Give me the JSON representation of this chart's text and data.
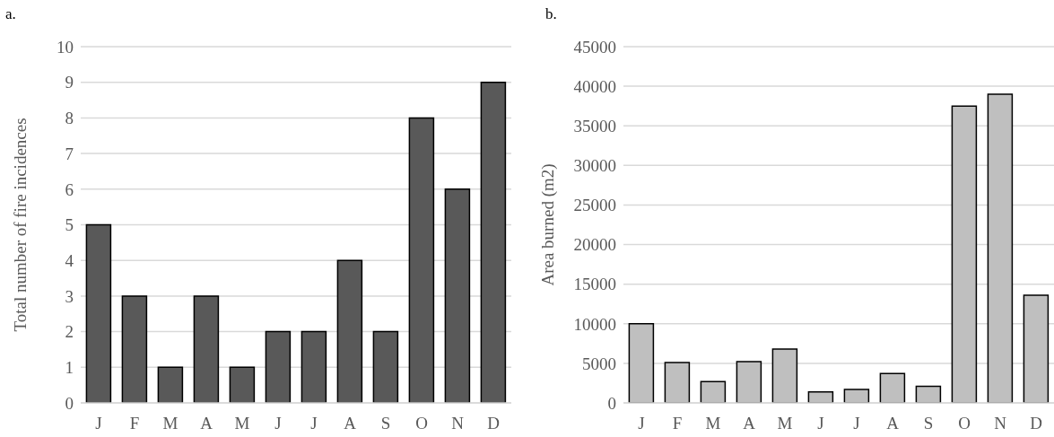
{
  "chart_data": [
    {
      "type": "bar",
      "title": "a.",
      "ylabel": "Total number of fire incidences",
      "categories": [
        "J",
        "F",
        "M",
        "A",
        "M",
        "J",
        "J",
        "A",
        "S",
        "O",
        "N",
        "D"
      ],
      "values": [
        5,
        3,
        1,
        3,
        1,
        2,
        2,
        4,
        2,
        8,
        6,
        9
      ],
      "color": "#595959",
      "ylim": [
        0,
        10
      ],
      "yticks": [
        0,
        1,
        2,
        3,
        4,
        5,
        6,
        7,
        8,
        9,
        10
      ],
      "grid": "y"
    },
    {
      "type": "bar",
      "title": "b.",
      "ylabel": "Area burned (m2)",
      "categories": [
        "J",
        "F",
        "M",
        "A",
        "M",
        "J",
        "J",
        "A",
        "S",
        "O",
        "N",
        "D"
      ],
      "values": [
        10000,
        5100,
        2700,
        5200,
        6800,
        1400,
        1700,
        3700,
        2100,
        37500,
        39000,
        13600
      ],
      "color": "#bfbfbf",
      "ylim": [
        0,
        45000
      ],
      "yticks": [
        0,
        5000,
        10000,
        15000,
        20000,
        25000,
        30000,
        35000,
        40000,
        45000
      ],
      "grid": "y"
    }
  ]
}
